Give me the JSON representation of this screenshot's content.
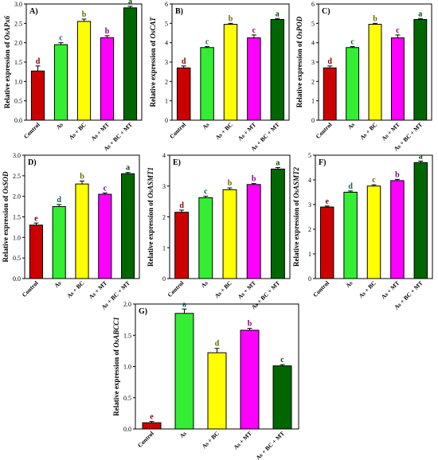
{
  "chart_data": [
    {
      "type": "bar",
      "panel": "A)",
      "ylabel": "Relative expression of OsAPx6",
      "categories": [
        "Control",
        "As",
        "As + BC",
        "As + MT",
        "As + BC + MT"
      ],
      "values": [
        1.27,
        1.95,
        2.55,
        2.13,
        2.9
      ],
      "errors": [
        0.13,
        0.05,
        0.06,
        0.05,
        0.04
      ],
      "letters": [
        "d",
        "c",
        "b",
        "b",
        "a"
      ],
      "ylim": [
        0,
        3.0
      ],
      "yticks": [
        0,
        0.5,
        1.0,
        1.5,
        2.0,
        2.5,
        3.0
      ],
      "ytick_labels": [
        "0.0",
        "0.5",
        "1.0",
        "1.5",
        "2.0",
        "2.5",
        "3.0"
      ]
    },
    {
      "type": "bar",
      "panel": "B)",
      "ylabel": "Relative expression of OsCAT",
      "categories": [
        "Control",
        "As",
        "As + BC",
        "As + MT",
        "As + BC + MT"
      ],
      "values": [
        2.7,
        3.75,
        4.95,
        4.25,
        5.2
      ],
      "errors": [
        0.1,
        0.05,
        0.05,
        0.15,
        0.05
      ],
      "letters": [
        "d",
        "c",
        "b",
        "c",
        "a"
      ],
      "ylim": [
        0,
        6
      ],
      "yticks": [
        0,
        1,
        2,
        3,
        4,
        5,
        6
      ],
      "ytick_labels": [
        "0",
        "1",
        "2",
        "3",
        "4",
        "5",
        "6"
      ]
    },
    {
      "type": "bar",
      "panel": "C)",
      "ylabel": "Relative expression of OsPOD",
      "categories": [
        "Control",
        "As",
        "As + BC",
        "As + MT",
        "As + BC + MT"
      ],
      "values": [
        2.7,
        3.75,
        4.95,
        4.25,
        5.2
      ],
      "errors": [
        0.1,
        0.05,
        0.05,
        0.15,
        0.05
      ],
      "letters": [
        "d",
        "c",
        "b",
        "c",
        "a"
      ],
      "ylim": [
        0,
        6
      ],
      "yticks": [
        0,
        1,
        2,
        3,
        4,
        5,
        6
      ],
      "ytick_labels": [
        "0",
        "1",
        "2",
        "3",
        "4",
        "5",
        "6"
      ]
    },
    {
      "type": "bar",
      "panel": "D)",
      "ylabel": "Relative expression of OsSOD",
      "categories": [
        "Control",
        "As",
        "As + BC",
        "As + MT",
        "As + BC + MT"
      ],
      "values": [
        1.3,
        1.75,
        2.3,
        2.05,
        2.55
      ],
      "errors": [
        0.05,
        0.05,
        0.07,
        0.03,
        0.03
      ],
      "letters": [
        "e",
        "d",
        "b",
        "c",
        "a"
      ],
      "ylim": [
        0,
        3.0
      ],
      "yticks": [
        0,
        0.5,
        1.0,
        1.5,
        2.0,
        2.5,
        3.0
      ],
      "ytick_labels": [
        "0.0",
        "0.5",
        "1.0",
        "1.5",
        "2.0",
        "2.5",
        "3.0"
      ]
    },
    {
      "type": "bar",
      "panel": "E)",
      "ylabel": "Relative expression of OsASMT1",
      "categories": [
        "Control",
        "As",
        "As + BC",
        "As + MT",
        "As + BC + MT"
      ],
      "values": [
        2.15,
        2.62,
        2.88,
        3.05,
        3.55
      ],
      "errors": [
        0.07,
        0.05,
        0.06,
        0.03,
        0.05
      ],
      "letters": [
        "d",
        "c",
        "b",
        "b",
        "a"
      ],
      "ylim": [
        0,
        4
      ],
      "yticks": [
        0,
        1,
        2,
        3,
        4
      ],
      "ytick_labels": [
        "0",
        "1",
        "2",
        "3",
        "4"
      ]
    },
    {
      "type": "bar",
      "panel": "F)",
      "ylabel": "Relative expression of OsASMT2",
      "categories": [
        "Control",
        "As",
        "As + BC",
        "As + MT",
        "As + BC + MT"
      ],
      "values": [
        2.9,
        3.5,
        3.75,
        3.97,
        4.7
      ],
      "errors": [
        0.04,
        0.05,
        0.05,
        0.05,
        0.06
      ],
      "letters": [
        "e",
        "d",
        "c",
        "b",
        "a"
      ],
      "ylim": [
        0,
        5
      ],
      "yticks": [
        0,
        1,
        2,
        3,
        4,
        5
      ],
      "ytick_labels": [
        "0",
        "1",
        "2",
        "3",
        "4",
        "5"
      ]
    },
    {
      "type": "bar",
      "panel": "G)",
      "ylabel": "Relative expression of OsABCC1",
      "categories": [
        "Control",
        "As",
        "As + BC",
        "As + MT",
        "As + BC + MT"
      ],
      "values": [
        0.1,
        1.85,
        1.22,
        1.58,
        1.01
      ],
      "errors": [
        0.02,
        0.07,
        0.07,
        0.03,
        0.02
      ],
      "letters": [
        "e",
        "a",
        "d",
        "b",
        "c"
      ],
      "ylim": [
        0,
        2.0
      ],
      "yticks": [
        0,
        0.5,
        1.0,
        1.5,
        2.0
      ],
      "ytick_labels": [
        "0.0",
        "0.5",
        "1.0",
        "1.5",
        "2.0"
      ]
    }
  ],
  "colors": {
    "bars": [
      "#cc0000",
      "#33ee33",
      "#ffff00",
      "#ff00ff",
      "#006600"
    ],
    "letter": [
      "#800000",
      "#006666",
      "#666600",
      "#800080",
      "#004400"
    ],
    "axis": "#000000"
  }
}
